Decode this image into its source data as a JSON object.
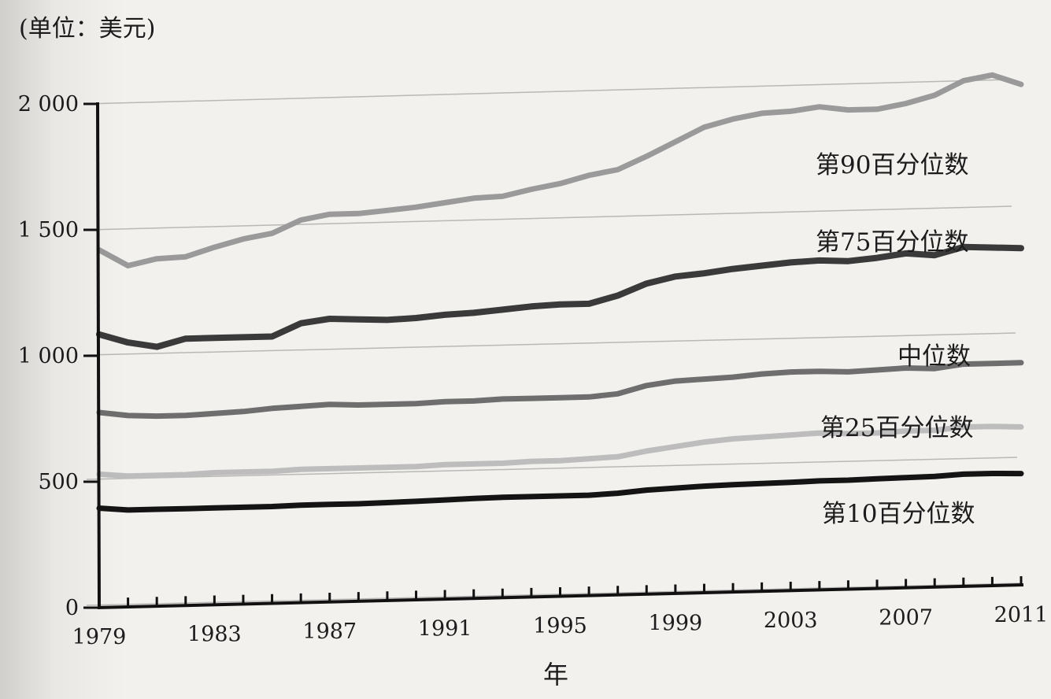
{
  "chart_data": {
    "type": "line",
    "unit_label": "(单位：美元)",
    "xlabel": "年",
    "ylabel": "",
    "ylim": [
      0,
      2000
    ],
    "xlim": [
      1979,
      2011
    ],
    "grid": false,
    "y_ticks": [
      0,
      500,
      1000,
      1500,
      2000
    ],
    "y_tick_labels": [
      "0",
      "500",
      "1 000",
      "1 500",
      "2 000"
    ],
    "x_tick_labels": [
      "1979",
      "1983",
      "1987",
      "1991",
      "1995",
      "1999",
      "2003",
      "2007",
      "2011"
    ],
    "x": [
      1979,
      1980,
      1981,
      1982,
      1983,
      1984,
      1985,
      1986,
      1987,
      1988,
      1989,
      1990,
      1991,
      1992,
      1993,
      1994,
      1995,
      1996,
      1997,
      1998,
      1999,
      2000,
      2001,
      2002,
      2003,
      2004,
      2005,
      2006,
      2007,
      2008,
      2009,
      2010,
      2011
    ],
    "series": [
      {
        "name": "第90百分位数",
        "color": "#9a9a9a",
        "stroke_width": 7,
        "values": [
          1420,
          1355,
          1380,
          1385,
          1420,
          1450,
          1470,
          1520,
          1540,
          1540,
          1550,
          1560,
          1575,
          1590,
          1595,
          1620,
          1640,
          1670,
          1690,
          1740,
          1795,
          1850,
          1880,
          1900,
          1905,
          1920,
          1905,
          1905,
          1925,
          1955,
          2010,
          2030,
          1990
        ]
      },
      {
        "name": "第75百分位数",
        "color": "#3a3a3a",
        "stroke_width": 8,
        "values": [
          1085,
          1050,
          1030,
          1060,
          1060,
          1060,
          1060,
          1110,
          1125,
          1120,
          1115,
          1120,
          1130,
          1135,
          1145,
          1155,
          1160,
          1160,
          1190,
          1235,
          1260,
          1270,
          1285,
          1295,
          1305,
          1310,
          1305,
          1315,
          1330,
          1320,
          1350,
          1345,
          1340
        ]
      },
      {
        "name": "中位数",
        "color": "#6e6e6e",
        "stroke_width": 7,
        "values": [
          775,
          760,
          755,
          755,
          760,
          765,
          775,
          780,
          785,
          780,
          780,
          780,
          785,
          785,
          790,
          790,
          790,
          790,
          800,
          830,
          845,
          850,
          855,
          865,
          870,
          870,
          865,
          870,
          875,
          870,
          885,
          885,
          885
        ]
      },
      {
        "name": "第25百分位数",
        "color": "#bdbdbd",
        "stroke_width": 7,
        "values": [
          530,
          520,
          520,
          520,
          525,
          525,
          525,
          530,
          530,
          530,
          530,
          530,
          535,
          535,
          535,
          540,
          540,
          545,
          550,
          570,
          585,
          600,
          610,
          615,
          620,
          625,
          620,
          620,
          625,
          625,
          635,
          635,
          630
        ]
      },
      {
        "name": "第10百分位数",
        "color": "#141414",
        "stroke_width": 7,
        "values": [
          395,
          385,
          385,
          385,
          385,
          385,
          385,
          388,
          388,
          388,
          390,
          392,
          395,
          398,
          400,
          400,
          400,
          400,
          405,
          415,
          420,
          425,
          428,
          430,
          432,
          435,
          435,
          438,
          440,
          442,
          448,
          448,
          445
        ]
      }
    ]
  }
}
